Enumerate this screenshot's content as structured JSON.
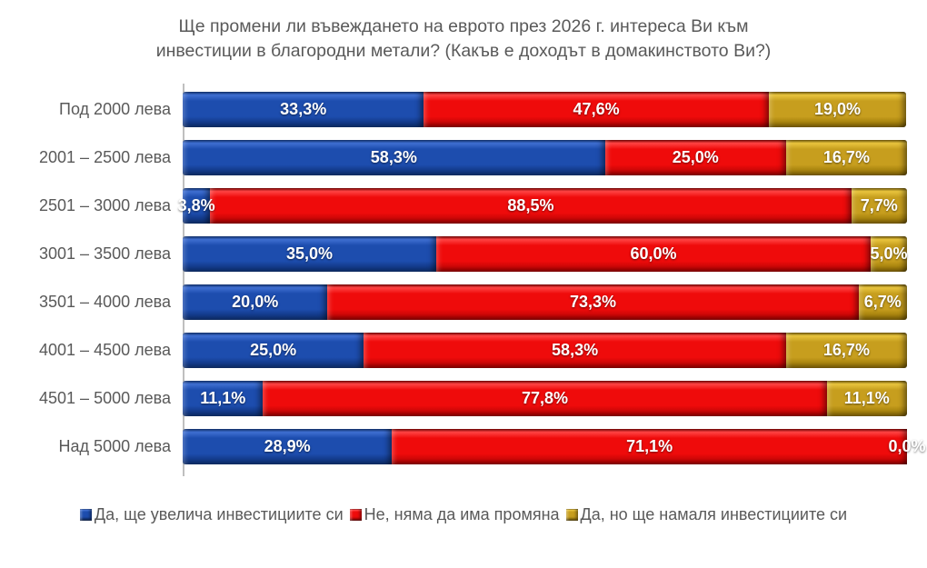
{
  "title": {
    "line1": "Ще промени ли въвеждането на еврото през 2026 г. интереса Ви към",
    "line2": "инвестиции в благородни метали? (Какъв е доходът в домакинството Ви?)"
  },
  "text_color": "#595959",
  "axis_line_color": "#BFBFBF",
  "chart_data": {
    "type": "bar",
    "subtype": "horizontal-stacked-percent",
    "title": "Ще промени ли въвеждането на еврото през 2026 г. интереса Ви към инвестиции в благородни метали? (Какъв е доходът в домакинството Ви?)",
    "categories": [
      "Под 2000 лева",
      "2001 – 2500 лева",
      "2501 – 3000 лева",
      "3001 – 3500 лева",
      "3501 – 4000 лева",
      "4001 – 4500 лева",
      "4501 – 5000 лева",
      "Над 5000 лева"
    ],
    "series": [
      {
        "name": "Да, ще увелича инвестициите си",
        "color": "#1D4DAE",
        "values": [
          33.3,
          58.3,
          3.8,
          35.0,
          20.0,
          25.0,
          11.1,
          28.9
        ],
        "labels": [
          "33,3%",
          "58,3%",
          "3,8%",
          "35,0%",
          "20,0%",
          "25,0%",
          "11,1%",
          "28,9%"
        ]
      },
      {
        "name": "Не, няма да има промяна",
        "color": "#EF0B0B",
        "values": [
          47.6,
          25.0,
          88.5,
          60.0,
          73.3,
          58.3,
          77.8,
          71.1
        ],
        "labels": [
          "47,6%",
          "25,0%",
          "88,5%",
          "60,0%",
          "73,3%",
          "58,3%",
          "77,8%",
          "71,1%"
        ]
      },
      {
        "name": "Да, но ще намаля инвестициите си",
        "color": "#C79E1E",
        "values": [
          19.0,
          16.7,
          7.7,
          5.0,
          6.7,
          16.7,
          11.1,
          0.0
        ],
        "labels": [
          "19,0%",
          "16,7%",
          "7,7%",
          "5,0%",
          "6,7%",
          "16,7%",
          "11,1%",
          "0,0%"
        ]
      }
    ],
    "xlim": [
      0,
      100
    ],
    "grid": false,
    "data_labels": true,
    "data_label_color": "#FFFFFF",
    "legend_position": "bottom"
  }
}
